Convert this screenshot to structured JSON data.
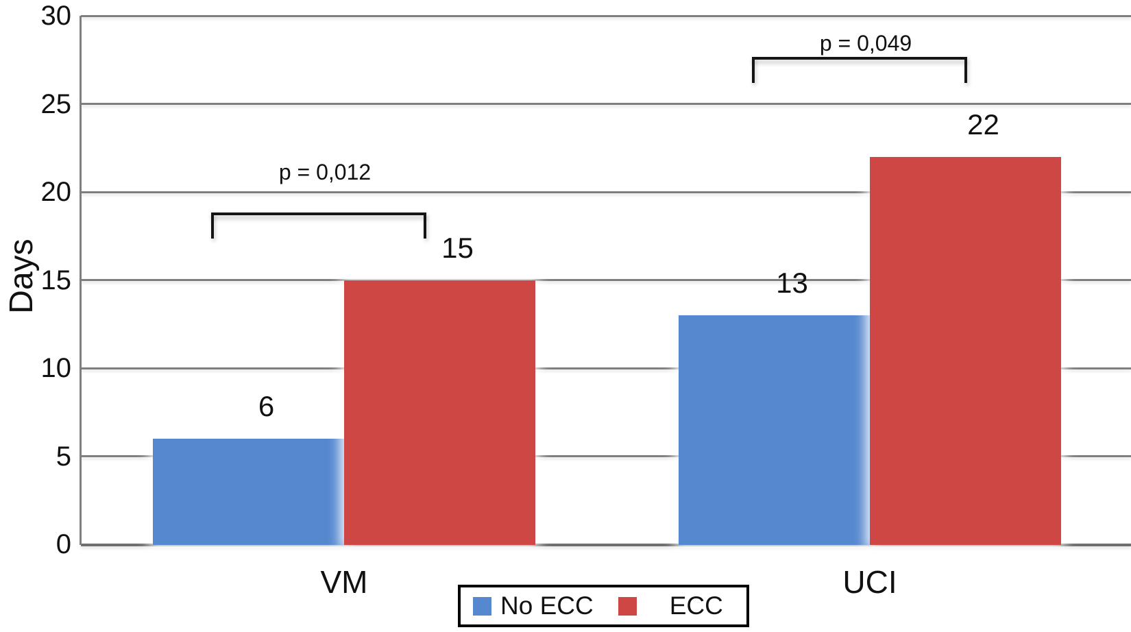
{
  "chart_data": {
    "type": "bar",
    "title": "",
    "xlabel": "",
    "ylabel": "Days",
    "categories": [
      "VM",
      "UCI"
    ],
    "series": [
      {
        "name": "No ECC",
        "color": "#5588CF",
        "values": [
          6,
          13
        ]
      },
      {
        "name": "ECC",
        "color": "#CE4744",
        "values": [
          15,
          22
        ]
      }
    ],
    "ylim": [
      0,
      30
    ],
    "yticks": [
      0,
      5,
      10,
      15,
      20,
      25,
      30
    ],
    "grid": true,
    "gridline_color": "#7f7f7f",
    "legend_position": "bottom",
    "value_labels_shown": true,
    "annotations": [
      {
        "group": "VM",
        "text": "p = 0,012"
      },
      {
        "group": "UCI",
        "text": "p = 0,049"
      }
    ]
  }
}
